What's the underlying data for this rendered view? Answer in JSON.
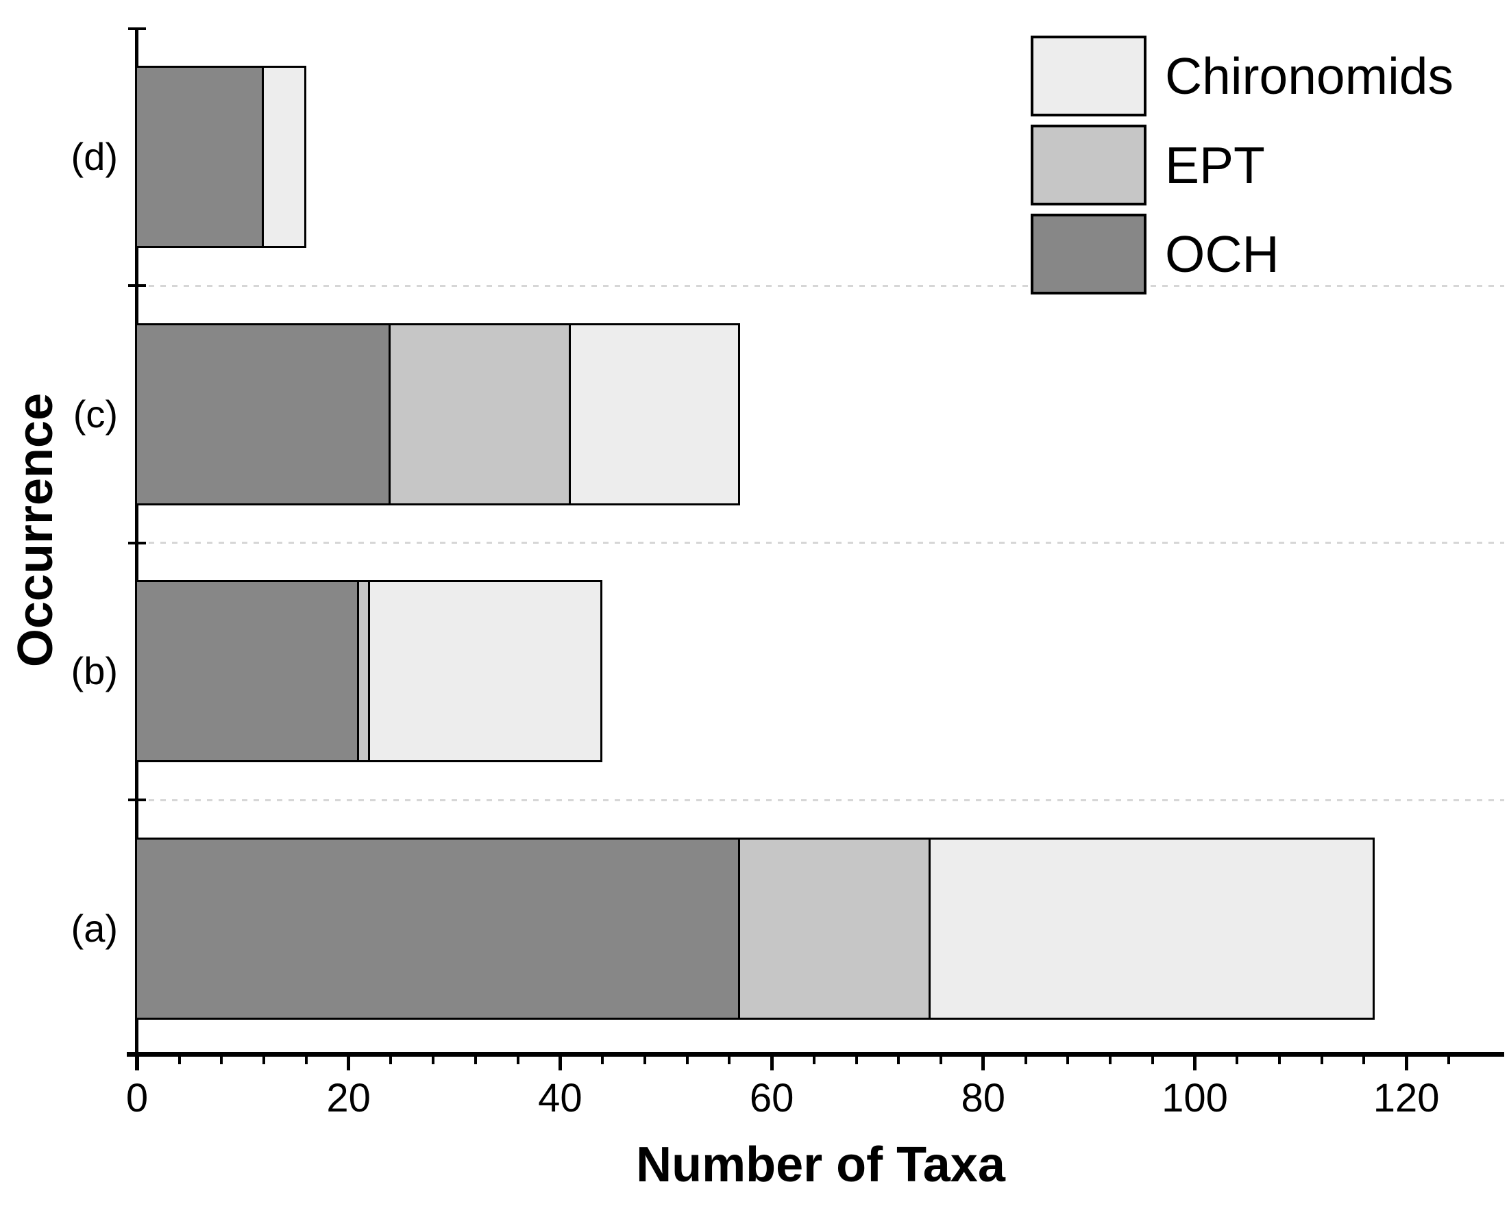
{
  "chart_data": {
    "type": "bar",
    "orientation": "horizontal",
    "title": "",
    "xlabel": "Number of Taxa",
    "ylabel": "Occurrence",
    "categories": [
      "(d)",
      "(c)",
      "(b)",
      "(a)"
    ],
    "categories_order": "top-to-bottom",
    "series": [
      {
        "name": "OCH",
        "color": "#878787",
        "values": [
          12,
          24,
          21,
          57
        ]
      },
      {
        "name": "EPT",
        "color": "#c6c6c6",
        "values": [
          0,
          17,
          1,
          18
        ]
      },
      {
        "name": "Chironomids",
        "color": "#ededed",
        "values": [
          4,
          16,
          22,
          42
        ]
      }
    ],
    "stack_totals": [
      16,
      57,
      44,
      117
    ],
    "xlim": [
      0,
      128
    ],
    "xticks": [
      0,
      20,
      40,
      60,
      80,
      100,
      120
    ],
    "xtick_labels": [
      "0",
      "20",
      "40",
      "60",
      "80",
      "100",
      "120"
    ],
    "minor_tick_step": 4,
    "grid": "dashed light-gray horizontal separator between category slots",
    "legend": {
      "position": "top-right",
      "entries": [
        "Chironomids",
        "EPT",
        "OCH"
      ]
    },
    "colors": {
      "Chironomids": "#ededed",
      "EPT": "#c6c6c6",
      "OCH": "#878787",
      "axis": "#000000",
      "gridline": "#d6d6d6",
      "bar_border": "#000000",
      "background": "#ffffff"
    }
  }
}
